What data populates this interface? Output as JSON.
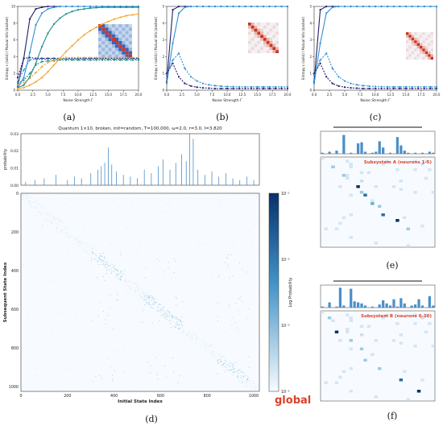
{
  "figure": {
    "panel_labels": [
      "(a)",
      "(b)",
      "(c)",
      "(d)",
      "(e)",
      "(f)"
    ],
    "global_label": "global",
    "colors": {
      "navy": "#1f1f6e",
      "blue": "#2e8fd6",
      "teal": "#1e8c8c",
      "orange": "#f2a52b",
      "heat_dark": "#08306b",
      "heat_mid": "#4292c6",
      "heat_light": "#deebf7",
      "hist_bar": "#4a8fc9",
      "red": "#d9412b"
    }
  },
  "chart_data": [
    {
      "type": "line",
      "panel": "(a)",
      "xlabel": "Noise Strength Γ",
      "ylabel": "Entropy ε (solid) / Mutual Info (dashed)",
      "xlim": [
        0,
        20
      ],
      "ylim": [
        0,
        10
      ],
      "x_ticks": [
        "0.0",
        "2.5",
        "5.0",
        "7.5",
        "10.0",
        "12.5",
        "15.0",
        "17.5",
        "20.0"
      ],
      "y_ticks": [
        "0",
        "2",
        "4",
        "6",
        "8",
        "10"
      ],
      "x": [
        0,
        1,
        2,
        3,
        4,
        5,
        6,
        7,
        8,
        9,
        10,
        11,
        12,
        13,
        14,
        15,
        16,
        17,
        18,
        19,
        20
      ],
      "series": [
        {
          "color": "#1f1f6e",
          "style": "solid",
          "values": [
            0.5,
            3.8,
            8.5,
            9.7,
            9.9,
            10,
            10,
            10,
            10,
            10,
            10,
            10,
            10,
            10,
            10,
            10,
            10,
            10,
            10,
            10,
            10
          ]
        },
        {
          "color": "#2e8fd6",
          "style": "solid",
          "values": [
            0.3,
            1.5,
            4.5,
            7.8,
            9.2,
            9.7,
            9.9,
            10,
            10,
            10,
            10,
            10,
            10,
            10,
            10,
            10,
            10,
            10,
            10,
            10,
            10
          ]
        },
        {
          "color": "#1e8c8c",
          "style": "solid",
          "values": [
            0.3,
            0.6,
            1.6,
            3.2,
            5.2,
            6.8,
            7.9,
            8.6,
            9.1,
            9.4,
            9.6,
            9.7,
            9.8,
            9.85,
            9.9,
            9.9,
            9.9,
            9.9,
            9.9,
            9.9,
            9.9
          ]
        },
        {
          "color": "#f2a52b",
          "style": "solid",
          "values": [
            0.2,
            0.3,
            0.6,
            1.0,
            1.5,
            2.2,
            3.0,
            3.8,
            4.6,
            5.3,
            6.0,
            6.6,
            7.1,
            7.5,
            7.9,
            8.2,
            8.5,
            8.7,
            8.9,
            9.0,
            9.1
          ]
        },
        {
          "color": "#1f1f6e",
          "style": "dashed",
          "values": [
            1.5,
            3.8,
            3.9,
            3.8,
            3.8,
            3.8,
            3.8,
            3.8,
            3.8,
            3.8,
            3.8,
            3.8,
            3.8,
            3.8,
            3.8,
            3.8,
            3.8,
            3.8,
            3.8,
            3.8,
            3.8
          ]
        },
        {
          "color": "#2e8fd6",
          "style": "dashed",
          "values": [
            1.0,
            2.4,
            3.6,
            3.7,
            3.7,
            3.7,
            3.7,
            3.7,
            3.7,
            3.7,
            3.7,
            3.7,
            3.7,
            3.7,
            3.7,
            3.7,
            3.7,
            3.7,
            3.7,
            3.7,
            3.7
          ]
        },
        {
          "color": "#1e8c8c",
          "style": "dashed",
          "values": [
            0.8,
            1.2,
            2.0,
            3.0,
            3.4,
            3.5,
            3.5,
            3.6,
            3.6,
            3.6,
            3.6,
            3.6,
            3.6,
            3.6,
            3.6,
            3.6,
            3.6,
            3.6,
            3.6,
            3.6,
            3.6
          ]
        },
        {
          "color": "#f2a52b",
          "style": "dashed",
          "values": [
            0.6,
            0.9,
            1.4,
            2.1,
            2.8,
            3.3,
            3.6,
            3.8,
            3.9,
            3.9,
            3.9,
            3.9,
            3.9,
            3.9,
            3.9,
            3.9,
            3.9,
            3.9,
            3.9,
            3.9,
            3.9
          ]
        }
      ]
    },
    {
      "type": "line",
      "panel": "(b)",
      "xlabel": "Noise Strength Γ",
      "ylabel": "Entropy ε (solid) / Mutual Info (dashed)",
      "xlim": [
        0,
        20
      ],
      "ylim": [
        0,
        5
      ],
      "x_ticks": [
        "0.0",
        "2.5",
        "5.0",
        "7.5",
        "10.0",
        "12.5",
        "15.0",
        "17.5",
        "20.0"
      ],
      "y_ticks": [
        "0",
        "1",
        "2",
        "3",
        "4",
        "5"
      ],
      "x": [
        0,
        1,
        2,
        3,
        4,
        5,
        6,
        7,
        8,
        9,
        10,
        11,
        12,
        13,
        14,
        15,
        16,
        17,
        18,
        19,
        20
      ],
      "series": [
        {
          "color": "#1f1f6e",
          "style": "solid",
          "values": [
            0.5,
            4.8,
            5,
            5,
            5,
            5,
            5,
            5,
            5,
            5,
            5,
            5,
            5,
            5,
            5,
            5,
            5,
            5,
            5,
            5,
            5
          ]
        },
        {
          "color": "#2e8fd6",
          "style": "solid",
          "values": [
            0.4,
            2.8,
            4.6,
            4.95,
            5,
            5,
            5,
            5,
            5,
            5,
            5,
            5,
            5,
            5,
            5,
            5,
            5,
            5,
            5,
            5,
            5
          ]
        },
        {
          "color": "#1f1f6e",
          "style": "dashed",
          "values": [
            1.0,
            1.6,
            0.8,
            0.4,
            0.25,
            0.18,
            0.14,
            0.12,
            0.1,
            0.1,
            0.1,
            0.1,
            0.1,
            0.1,
            0.1,
            0.1,
            0.1,
            0.1,
            0.1,
            0.1,
            0.1
          ]
        },
        {
          "color": "#2e8fd6",
          "style": "dashed",
          "values": [
            0.9,
            1.8,
            2.2,
            1.3,
            0.8,
            0.55,
            0.4,
            0.32,
            0.27,
            0.24,
            0.22,
            0.21,
            0.2,
            0.2,
            0.2,
            0.2,
            0.2,
            0.2,
            0.2,
            0.2,
            0.2
          ]
        }
      ]
    },
    {
      "type": "line",
      "panel": "(c)",
      "xlabel": "Noise Strength Γ",
      "ylabel": "Entropy ε (solid) / Mutual Info (dashed)",
      "xlim": [
        0,
        20
      ],
      "ylim": [
        0,
        5
      ],
      "x_ticks": [
        "0.0",
        "2.5",
        "5.0",
        "7.5",
        "10.0",
        "12.5",
        "15.0",
        "17.5",
        "20.0"
      ],
      "y_ticks": [
        "0",
        "1",
        "2",
        "3",
        "4",
        "5"
      ],
      "x": [
        0,
        1,
        2,
        3,
        4,
        5,
        6,
        7,
        8,
        9,
        10,
        11,
        12,
        13,
        14,
        15,
        16,
        17,
        18,
        19,
        20
      ],
      "series": [
        {
          "color": "#1f1f6e",
          "style": "solid",
          "values": [
            0.5,
            4.8,
            5,
            5,
            5,
            5,
            5,
            5,
            5,
            5,
            5,
            5,
            5,
            5,
            5,
            5,
            5,
            5,
            5,
            5,
            5
          ]
        },
        {
          "color": "#2e8fd6",
          "style": "solid",
          "values": [
            0.4,
            2.8,
            4.6,
            4.95,
            5,
            5,
            5,
            5,
            5,
            5,
            5,
            5,
            5,
            5,
            5,
            5,
            5,
            5,
            5,
            5,
            5
          ]
        },
        {
          "color": "#1f1f6e",
          "style": "dashed",
          "values": [
            1.0,
            1.6,
            0.8,
            0.4,
            0.25,
            0.18,
            0.14,
            0.12,
            0.1,
            0.1,
            0.1,
            0.1,
            0.1,
            0.1,
            0.1,
            0.1,
            0.1,
            0.1,
            0.1,
            0.1,
            0.1
          ]
        },
        {
          "color": "#2e8fd6",
          "style": "dashed",
          "values": [
            0.9,
            1.8,
            2.2,
            1.3,
            0.8,
            0.55,
            0.4,
            0.32,
            0.27,
            0.24,
            0.22,
            0.21,
            0.2,
            0.2,
            0.2,
            0.2,
            0.2,
            0.2,
            0.2,
            0.2,
            0.2
          ]
        }
      ]
    },
    {
      "type": "bar",
      "panel": "(d)",
      "title": "Quantum 1×10, broken, init=random, T=100,000, ω=2.0, r=3.0, I=3.820",
      "ylabel": "probability",
      "ylim": [
        0,
        0.03
      ],
      "y_ticks": [
        "0.00",
        "0.01",
        "0.02",
        "0.03"
      ],
      "peaks": [
        {
          "state": 20,
          "value": 0.002
        },
        {
          "state": 60,
          "value": 0.003
        },
        {
          "state": 100,
          "value": 0.004
        },
        {
          "state": 150,
          "value": 0.006
        },
        {
          "state": 200,
          "value": 0.003
        },
        {
          "state": 230,
          "value": 0.005
        },
        {
          "state": 260,
          "value": 0.004
        },
        {
          "state": 300,
          "value": 0.007
        },
        {
          "state": 330,
          "value": 0.009
        },
        {
          "state": 345,
          "value": 0.011
        },
        {
          "state": 360,
          "value": 0.013
        },
        {
          "state": 375,
          "value": 0.022
        },
        {
          "state": 390,
          "value": 0.012
        },
        {
          "state": 410,
          "value": 0.008
        },
        {
          "state": 440,
          "value": 0.006
        },
        {
          "state": 470,
          "value": 0.005
        },
        {
          "state": 500,
          "value": 0.004
        },
        {
          "state": 530,
          "value": 0.009
        },
        {
          "state": 560,
          "value": 0.007
        },
        {
          "state": 590,
          "value": 0.011
        },
        {
          "state": 610,
          "value": 0.015
        },
        {
          "state": 640,
          "value": 0.009
        },
        {
          "state": 665,
          "value": 0.013
        },
        {
          "state": 690,
          "value": 0.018
        },
        {
          "state": 710,
          "value": 0.014
        },
        {
          "state": 725,
          "value": 0.03
        },
        {
          "state": 740,
          "value": 0.027
        },
        {
          "state": 760,
          "value": 0.009
        },
        {
          "state": 790,
          "value": 0.006
        },
        {
          "state": 820,
          "value": 0.008
        },
        {
          "state": 850,
          "value": 0.005
        },
        {
          "state": 880,
          "value": 0.007
        },
        {
          "state": 910,
          "value": 0.004
        },
        {
          "state": 940,
          "value": 0.003
        },
        {
          "state": 970,
          "value": 0.005
        },
        {
          "state": 1000,
          "value": 0.003
        }
      ]
    },
    {
      "type": "heatmap",
      "panel": "(d)",
      "xlabel": "Initial State Index",
      "ylabel": "Subsequent State Index",
      "xlim": [
        0,
        1024
      ],
      "ylim": [
        0,
        1024
      ],
      "x_ticks": [
        "0",
        "200",
        "400",
        "600",
        "800",
        "1000"
      ],
      "y_ticks": [
        "0",
        "200",
        "400",
        "600",
        "800",
        "1000"
      ],
      "colorbar_label": "Log Probability",
      "colorbar_ticks": [
        "10⁻¹",
        "10⁻²",
        "10⁻³",
        "10⁻⁴"
      ],
      "dense_blocks": [
        [
          300,
          450
        ],
        [
          520,
          700
        ],
        [
          840,
          980
        ]
      ]
    },
    {
      "type": "heatmap",
      "panel": "(e)",
      "annotation": "Subsystem A (neurons 1-5)",
      "size": 32,
      "bar_values": [
        0.05,
        0,
        0.1,
        0,
        0.15,
        0,
        0.9,
        0,
        0.05,
        0,
        0.5,
        0.55,
        0.1,
        0,
        0.05,
        0.1,
        0.6,
        0.3,
        0,
        0.05,
        0,
        0.8,
        0.4,
        0.15,
        0.05,
        0,
        0.05,
        0,
        0.05,
        0,
        0.1,
        0.05
      ],
      "cells": [
        [
          10,
          10,
          1.0
        ],
        [
          13,
          12,
          0.6
        ],
        [
          16,
          14,
          0.5
        ],
        [
          20,
          17,
          0.7
        ],
        [
          22,
          21,
          0.9
        ],
        [
          6,
          6,
          0.2
        ],
        [
          12,
          11,
          0.2
        ],
        [
          17,
          16,
          0.2
        ],
        [
          25,
          24,
          0.15
        ],
        [
          3,
          3,
          0.1
        ]
      ]
    },
    {
      "type": "heatmap",
      "panel": "(f)",
      "annotation": "Subsystem B (neurons 6-10)",
      "size": 32,
      "bar_values": [
        0.05,
        0,
        0.25,
        0,
        0.05,
        0.95,
        0.1,
        0,
        0.9,
        0.3,
        0.25,
        0.2,
        0.1,
        0,
        0.05,
        0,
        0.15,
        0.35,
        0.2,
        0.1,
        0.4,
        0.05,
        0.45,
        0.2,
        0,
        0.1,
        0.15,
        0.4,
        0.1,
        0,
        0.55,
        0.1
      ],
      "cells": [
        [
          7,
          4,
          1.0
        ],
        [
          10,
          8,
          0.3
        ],
        [
          17,
          12,
          0.25
        ],
        [
          20,
          16,
          0.2
        ],
        [
          24,
          22,
          0.6
        ],
        [
          28,
          27,
          0.9
        ],
        [
          2,
          2,
          0.15
        ],
        [
          13,
          11,
          0.15
        ]
      ]
    }
  ]
}
